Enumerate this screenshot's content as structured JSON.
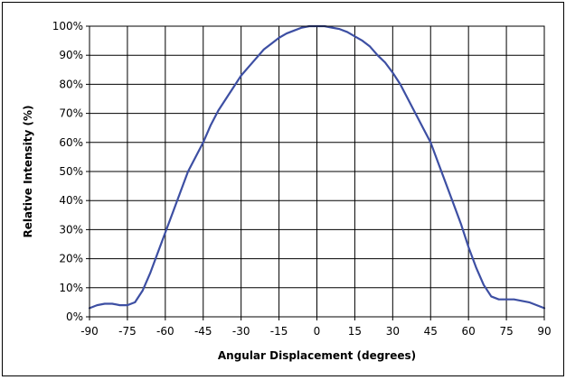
{
  "chart_data": {
    "type": "line",
    "title": "",
    "xlabel": "Angular Displacement (degrees)",
    "ylabel": "Relative Intensity (%)",
    "xlim": [
      -90,
      90
    ],
    "ylim": [
      0,
      100
    ],
    "xticks": [
      -90,
      -75,
      -60,
      -45,
      -30,
      -15,
      0,
      15,
      30,
      45,
      60,
      75,
      90
    ],
    "xtick_labels": [
      "-90",
      "-75",
      "-60",
      "-45",
      "-30",
      "-15",
      "0",
      "15",
      "30",
      "45",
      "60",
      "75",
      "90"
    ],
    "yticks": [
      0,
      10,
      20,
      30,
      40,
      50,
      60,
      70,
      80,
      90,
      100
    ],
    "ytick_labels": [
      "0%",
      "10%",
      "20%",
      "30%",
      "40%",
      "50%",
      "60%",
      "70%",
      "80%",
      "90%",
      "100%"
    ],
    "grid": true,
    "legend": "none",
    "series": [
      {
        "color": "#3d4fa3",
        "x": [
          -90,
          -87,
          -84,
          -81,
          -78,
          -75,
          -72,
          -69,
          -66,
          -63,
          -60,
          -57,
          -54,
          -51,
          -48,
          -45,
          -42,
          -39,
          -36,
          -33,
          -30,
          -27,
          -24,
          -21,
          -18,
          -15,
          -12,
          -9,
          -6,
          -3,
          0,
          3,
          6,
          9,
          12,
          15,
          18,
          21,
          24,
          27,
          30,
          33,
          36,
          39,
          42,
          45,
          48,
          51,
          54,
          57,
          60,
          63,
          66,
          69,
          72,
          75,
          78,
          81,
          84,
          87,
          90
        ],
        "y": [
          3,
          4,
          4.5,
          4.5,
          4,
          4,
          5,
          9,
          15,
          22,
          29,
          36,
          43,
          50,
          55,
          60,
          66,
          71,
          75,
          79,
          83,
          86,
          89,
          92,
          94,
          96,
          97.5,
          98.5,
          99.5,
          100,
          100,
          100,
          99.5,
          99,
          98,
          96.5,
          95,
          93,
          90,
          87.5,
          84,
          80,
          75,
          70,
          65,
          60,
          53,
          46,
          39,
          32,
          24,
          17,
          11,
          7,
          6,
          6,
          6,
          5.5,
          5,
          4,
          3
        ]
      }
    ]
  }
}
